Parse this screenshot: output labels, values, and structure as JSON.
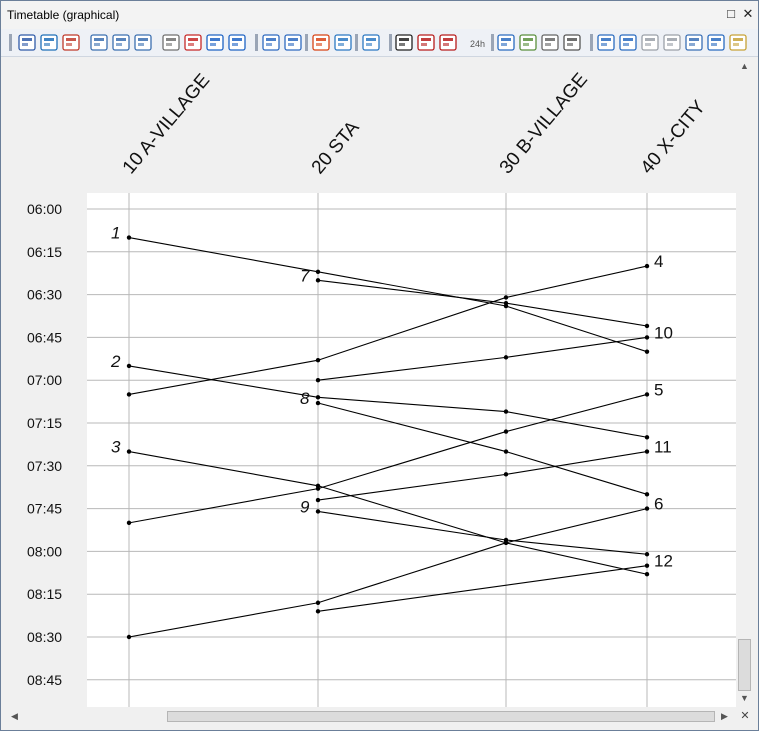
{
  "window": {
    "title": "Timetable (graphical)",
    "maximize_glyph": "□",
    "close_glyph": "✕",
    "corner_glyph": "✕"
  },
  "toolbar": {
    "icons": [
      "filter-stops-icon",
      "insert-stop-icon",
      "filter-icon",
      "layout-columns-1-icon",
      "layout-columns-2-icon",
      "layout-columns-3-icon",
      "record-icon",
      "stop-record-icon",
      "fit-view-icon",
      "zoom-box-icon",
      "sort-up-icon",
      "sort-down-icon",
      "hide-icon",
      "show-icon",
      "eye-settings-icon",
      "edit-line-icon",
      "edit-vehicle-icon",
      "edit-route-icon",
      "clock-24h-icon",
      "list-icon",
      "color-legend-icon",
      "print-icon",
      "camera-icon",
      "zoom-in-icon",
      "zoom-out-icon",
      "back-icon",
      "forward-icon",
      "pan-icon",
      "fit-width-icon",
      "edit-icon"
    ],
    "clock_label": "24h"
  },
  "stations": [
    "10 A-VILLAGE",
    "20 STA",
    "30 B-VILLAGE",
    "40 X-CITY"
  ],
  "time_axis": [
    "06:00",
    "06:15",
    "06:30",
    "06:45",
    "07:00",
    "07:15",
    "07:30",
    "07:45",
    "08:00",
    "08:15",
    "08:30",
    "08:45"
  ],
  "trains": [
    {
      "label": "1",
      "label_at": "start",
      "stops": [
        [
          0,
          "06:10"
        ],
        [
          1,
          "06:22"
        ],
        [
          2,
          "06:34"
        ],
        [
          3,
          "06:50"
        ]
      ]
    },
    {
      "label": "7",
      "label_at": "start",
      "stops": [
        [
          1,
          "06:25"
        ],
        [
          2,
          "06:33"
        ],
        [
          3,
          "06:41"
        ]
      ]
    },
    {
      "label": "4",
      "label_at": "end",
      "stops": [
        [
          0,
          "07:05"
        ],
        [
          1,
          "06:53"
        ],
        [
          2,
          "06:31"
        ],
        [
          3,
          "06:20"
        ]
      ]
    },
    {
      "label": "10",
      "label_at": "end",
      "stops": [
        [
          1,
          "07:00"
        ],
        [
          2,
          "06:52"
        ],
        [
          3,
          "06:45"
        ]
      ]
    },
    {
      "label": "2",
      "label_at": "start",
      "stops": [
        [
          0,
          "06:55"
        ],
        [
          1,
          "07:06"
        ],
        [
          2,
          "07:11"
        ],
        [
          3,
          "07:20"
        ]
      ]
    },
    {
      "label": "8",
      "label_at": "start",
      "stops": [
        [
          1,
          "07:08"
        ],
        [
          2,
          "07:25"
        ],
        [
          3,
          "07:40"
        ]
      ]
    },
    {
      "label": "5",
      "label_at": "end",
      "stops": [
        [
          0,
          "07:50"
        ],
        [
          1,
          "07:38"
        ],
        [
          2,
          "07:18"
        ],
        [
          3,
          "07:05"
        ]
      ]
    },
    {
      "label": "11",
      "label_at": "end",
      "stops": [
        [
          1,
          "07:42"
        ],
        [
          2,
          "07:33"
        ],
        [
          3,
          "07:25"
        ]
      ]
    },
    {
      "label": "3",
      "label_at": "start",
      "stops": [
        [
          0,
          "07:25"
        ],
        [
          1,
          "07:37"
        ],
        [
          2,
          "07:57"
        ],
        [
          3,
          "08:08"
        ]
      ]
    },
    {
      "label": "9",
      "label_at": "start",
      "stops": [
        [
          1,
          "07:46"
        ],
        [
          2,
          "07:56"
        ],
        [
          3,
          "08:01"
        ]
      ]
    },
    {
      "label": "6",
      "label_at": "end",
      "stops": [
        [
          0,
          "08:30"
        ],
        [
          1,
          "08:18"
        ],
        [
          2,
          "07:57"
        ],
        [
          3,
          "07:45"
        ]
      ]
    },
    {
      "label": "12",
      "label_at": "end",
      "stops": [
        [
          1,
          "08:21"
        ],
        [
          3,
          "08:05"
        ]
      ]
    }
  ],
  "colors": {
    "grid": "#b8b8b8",
    "line": "#000000",
    "header_bg": "#f0f0f0"
  }
}
